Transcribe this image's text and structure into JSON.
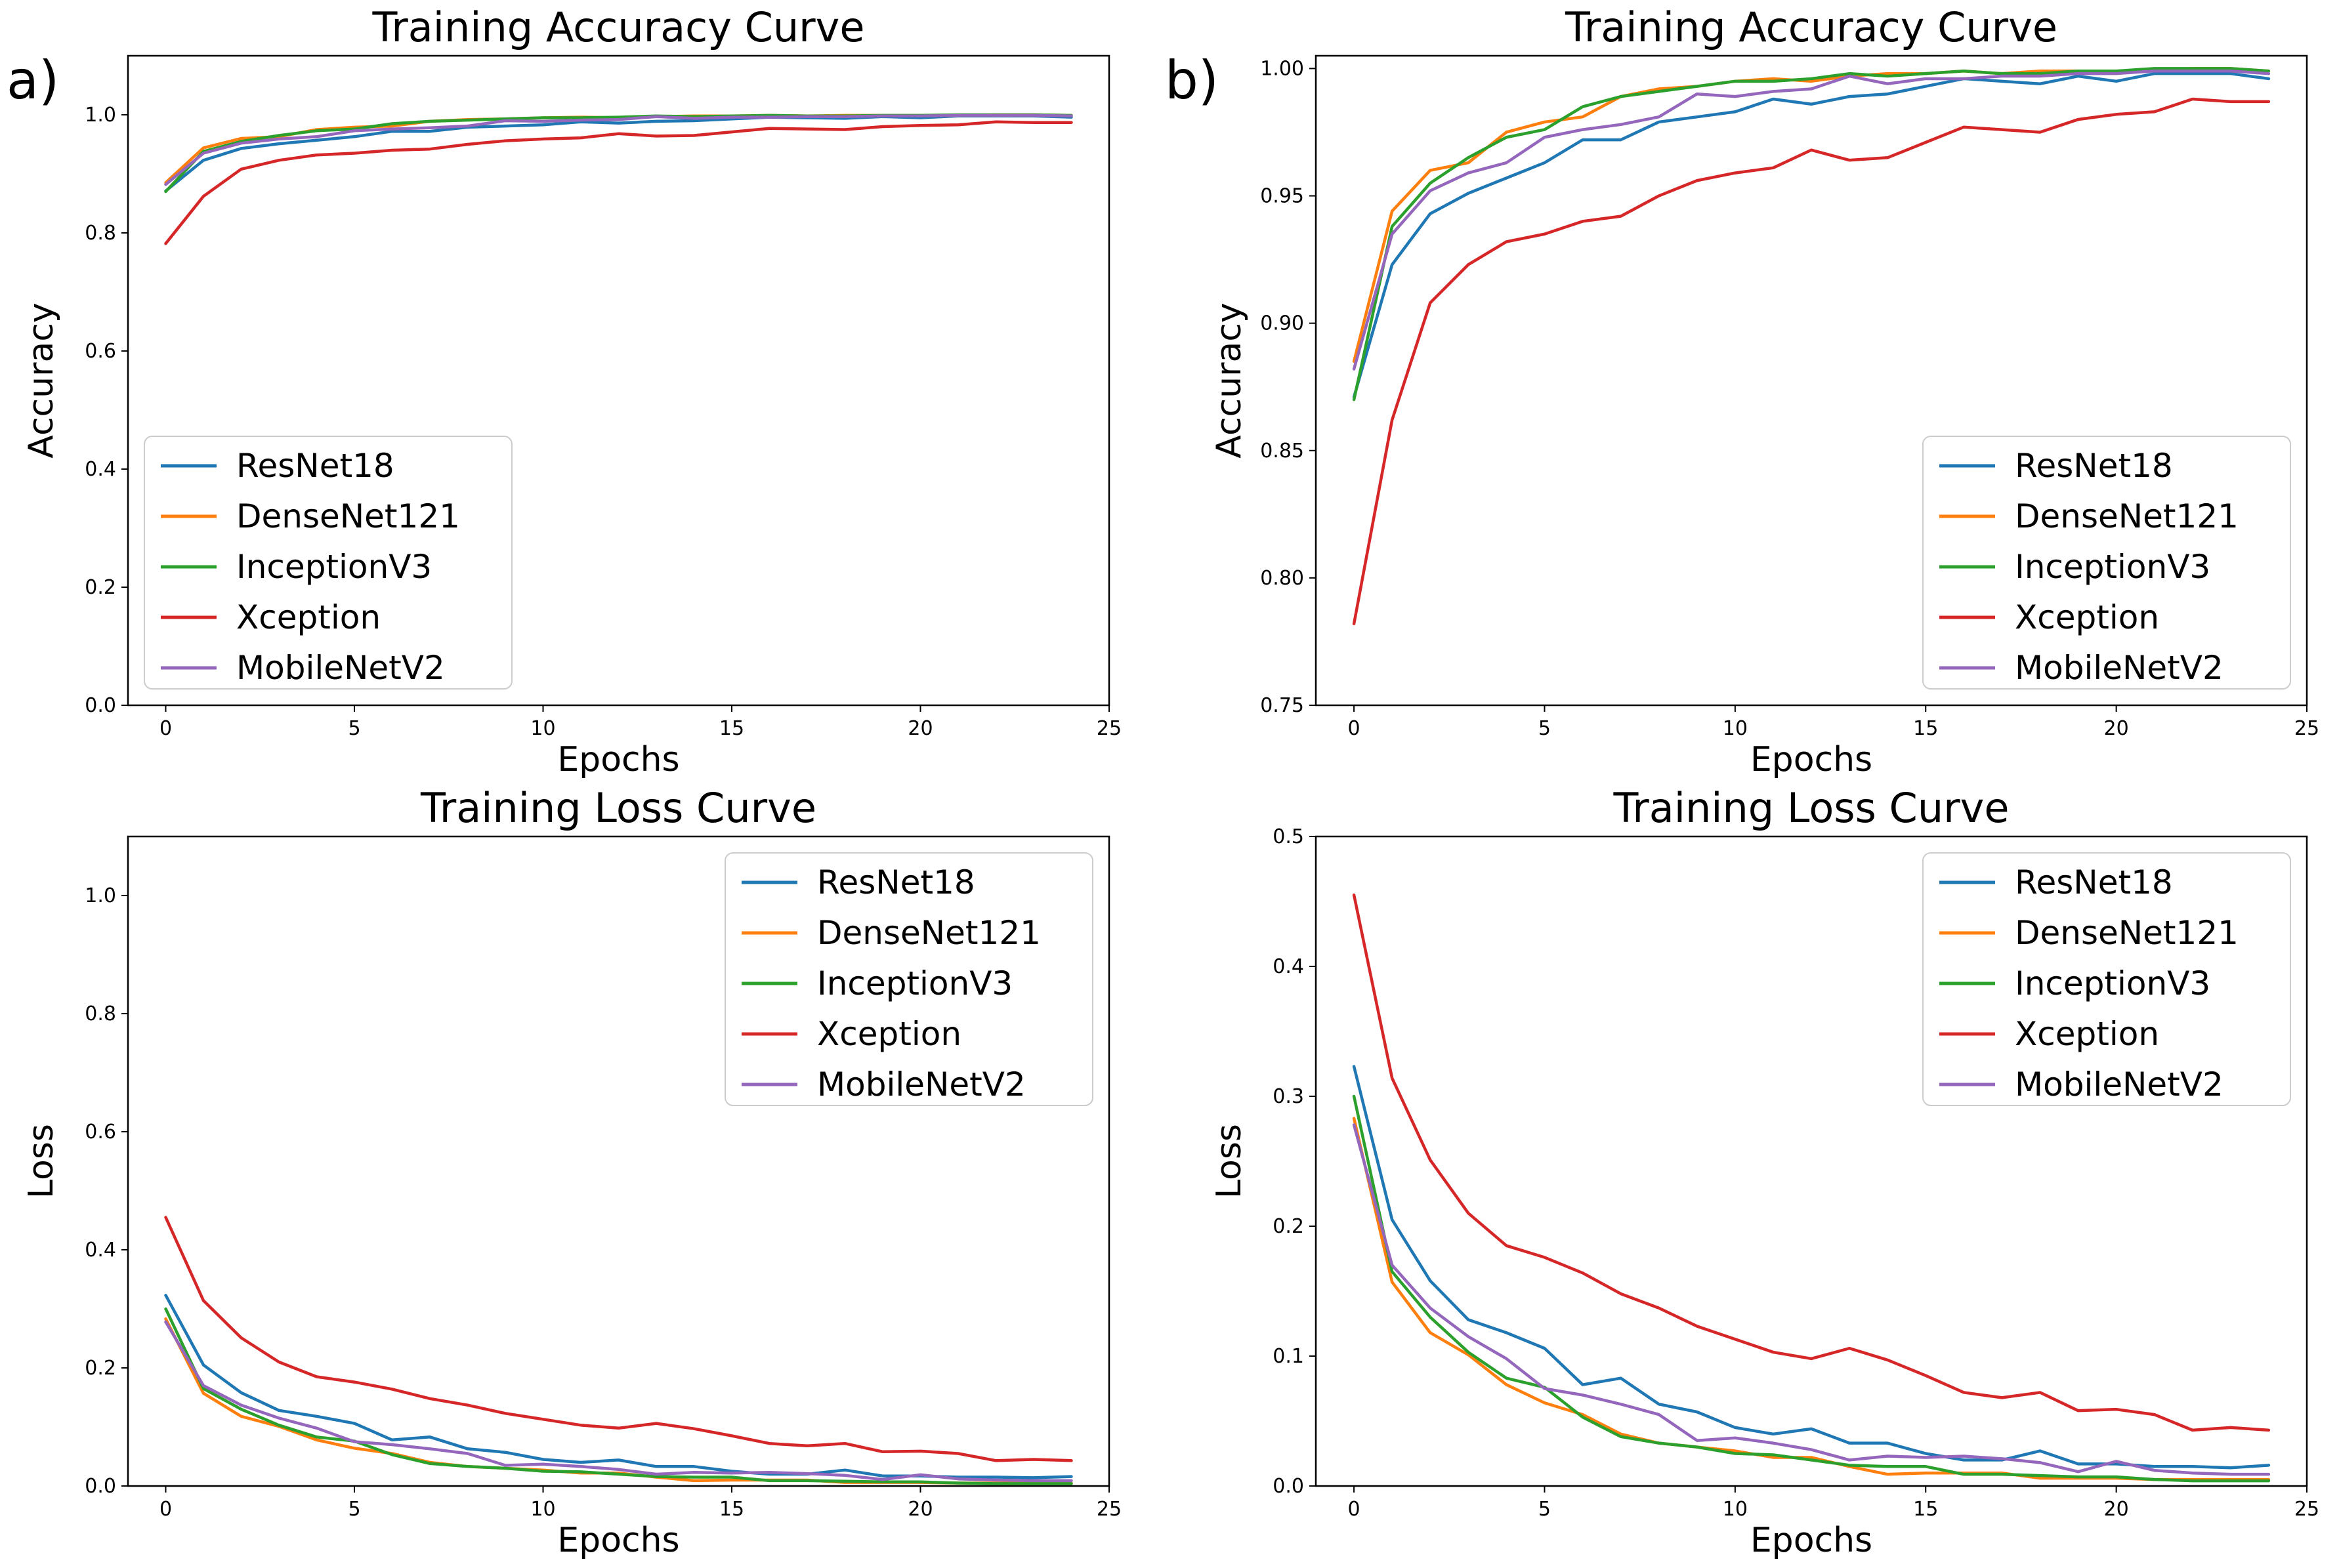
{
  "figure": {
    "panel_labels": [
      "a)",
      "b)"
    ]
  },
  "chart_data": [
    {
      "type": "line",
      "id": "a-acc",
      "title": "Training Accuracy Curve",
      "xlabel": "Epochs",
      "ylabel": "Accuracy",
      "xlim": [
        -1,
        25
      ],
      "ylim": [
        0,
        1.1
      ],
      "xticks": [
        0,
        5,
        10,
        15,
        20,
        25
      ],
      "yticks": [
        0.0,
        0.2,
        0.4,
        0.6,
        0.8,
        1.0
      ],
      "ytick_labels": [
        "0.0",
        "0.2",
        "0.4",
        "0.6",
        "0.8",
        "1.0"
      ],
      "legend_position": "bottom-left",
      "x": [
        0,
        1,
        2,
        3,
        4,
        5,
        6,
        7,
        8,
        9,
        10,
        11,
        12,
        13,
        14,
        15,
        16,
        17,
        18,
        19,
        20,
        21,
        22,
        23,
        24
      ],
      "series": [
        {
          "name": "ResNet18",
          "color": "#1f77b4",
          "values": [
            0.871,
            0.923,
            0.943,
            0.951,
            0.957,
            0.963,
            0.972,
            0.972,
            0.979,
            0.981,
            0.983,
            0.988,
            0.986,
            0.989,
            0.99,
            0.993,
            0.996,
            0.995,
            0.994,
            0.997,
            0.995,
            0.998,
            0.998,
            0.998,
            0.996
          ]
        },
        {
          "name": "DenseNet121",
          "color": "#ff7f0e",
          "values": [
            0.885,
            0.944,
            0.96,
            0.963,
            0.975,
            0.979,
            0.981,
            0.989,
            0.992,
            0.993,
            0.995,
            0.996,
            0.995,
            0.997,
            0.998,
            0.998,
            0.999,
            0.998,
            0.999,
            0.999,
            0.999,
            0.999,
            1.0,
            1.0,
            0.999
          ]
        },
        {
          "name": "InceptionV3",
          "color": "#2ca02c",
          "values": [
            0.87,
            0.938,
            0.955,
            0.965,
            0.973,
            0.976,
            0.985,
            0.989,
            0.991,
            0.993,
            0.995,
            0.995,
            0.996,
            0.998,
            0.997,
            0.998,
            0.999,
            0.998,
            0.998,
            0.999,
            0.999,
            1.0,
            1.0,
            1.0,
            0.999
          ]
        },
        {
          "name": "Xception",
          "color": "#d62728",
          "values": [
            0.782,
            0.862,
            0.908,
            0.923,
            0.932,
            0.935,
            0.94,
            0.942,
            0.95,
            0.956,
            0.959,
            0.961,
            0.968,
            0.964,
            0.965,
            0.971,
            0.977,
            0.976,
            0.975,
            0.98,
            0.982,
            0.983,
            0.988,
            0.987,
            0.987
          ]
        },
        {
          "name": "MobileNetV2",
          "color": "#9467bd",
          "values": [
            0.882,
            0.935,
            0.952,
            0.959,
            0.963,
            0.973,
            0.976,
            0.978,
            0.981,
            0.99,
            0.989,
            0.991,
            0.992,
            0.997,
            0.994,
            0.996,
            0.996,
            0.997,
            0.997,
            0.998,
            0.998,
            0.999,
            0.999,
            0.999,
            0.998
          ]
        }
      ]
    },
    {
      "type": "line",
      "id": "b-acc",
      "title": "Training Accuracy Curve",
      "xlabel": "Epochs",
      "ylabel": "Accuracy",
      "xlim": [
        -1,
        25
      ],
      "ylim": [
        0.75,
        1.005
      ],
      "xticks": [
        0,
        5,
        10,
        15,
        20,
        25
      ],
      "yticks": [
        0.75,
        0.8,
        0.85,
        0.9,
        0.95,
        1.0
      ],
      "ytick_labels": [
        "0.75",
        "0.80",
        "0.85",
        "0.90",
        "0.95",
        "1.00"
      ],
      "legend_position": "bottom-right",
      "x": [
        0,
        1,
        2,
        3,
        4,
        5,
        6,
        7,
        8,
        9,
        10,
        11,
        12,
        13,
        14,
        15,
        16,
        17,
        18,
        19,
        20,
        21,
        22,
        23,
        24
      ],
      "series": [
        {
          "name": "ResNet18",
          "color": "#1f77b4",
          "values": [
            0.871,
            0.923,
            0.943,
            0.951,
            0.957,
            0.963,
            0.972,
            0.972,
            0.979,
            0.981,
            0.983,
            0.988,
            0.986,
            0.989,
            0.99,
            0.993,
            0.996,
            0.995,
            0.994,
            0.997,
            0.995,
            0.998,
            0.998,
            0.998,
            0.996
          ]
        },
        {
          "name": "DenseNet121",
          "color": "#ff7f0e",
          "values": [
            0.885,
            0.944,
            0.96,
            0.963,
            0.975,
            0.979,
            0.981,
            0.989,
            0.992,
            0.993,
            0.995,
            0.996,
            0.995,
            0.997,
            0.998,
            0.998,
            0.999,
            0.998,
            0.999,
            0.999,
            0.999,
            0.999,
            1.0,
            1.0,
            0.999
          ]
        },
        {
          "name": "InceptionV3",
          "color": "#2ca02c",
          "values": [
            0.87,
            0.938,
            0.955,
            0.965,
            0.973,
            0.976,
            0.985,
            0.989,
            0.991,
            0.993,
            0.995,
            0.995,
            0.996,
            0.998,
            0.997,
            0.998,
            0.999,
            0.998,
            0.998,
            0.999,
            0.999,
            1.0,
            1.0,
            1.0,
            0.999
          ]
        },
        {
          "name": "Xception",
          "color": "#d62728",
          "values": [
            0.782,
            0.862,
            0.908,
            0.923,
            0.932,
            0.935,
            0.94,
            0.942,
            0.95,
            0.956,
            0.959,
            0.961,
            0.968,
            0.964,
            0.965,
            0.971,
            0.977,
            0.976,
            0.975,
            0.98,
            0.982,
            0.983,
            0.988,
            0.987,
            0.987
          ]
        },
        {
          "name": "MobileNetV2",
          "color": "#9467bd",
          "values": [
            0.882,
            0.935,
            0.952,
            0.959,
            0.963,
            0.973,
            0.976,
            0.978,
            0.981,
            0.99,
            0.989,
            0.991,
            0.992,
            0.997,
            0.994,
            0.996,
            0.996,
            0.997,
            0.997,
            0.998,
            0.998,
            0.999,
            0.999,
            0.999,
            0.998
          ]
        }
      ]
    },
    {
      "type": "line",
      "id": "a-loss",
      "title": "Training Loss Curve",
      "xlabel": "Epochs",
      "ylabel": "Loss",
      "xlim": [
        -1,
        25
      ],
      "ylim": [
        0,
        1.1
      ],
      "xticks": [
        0,
        5,
        10,
        15,
        20,
        25
      ],
      "yticks": [
        0.0,
        0.2,
        0.4,
        0.6,
        0.8,
        1.0
      ],
      "ytick_labels": [
        "0.0",
        "0.2",
        "0.4",
        "0.6",
        "0.8",
        "1.0"
      ],
      "legend_position": "top-right",
      "x": [
        0,
        1,
        2,
        3,
        4,
        5,
        6,
        7,
        8,
        9,
        10,
        11,
        12,
        13,
        14,
        15,
        16,
        17,
        18,
        19,
        20,
        21,
        22,
        23,
        24
      ],
      "series": [
        {
          "name": "ResNet18",
          "color": "#1f77b4",
          "values": [
            0.323,
            0.205,
            0.158,
            0.128,
            0.118,
            0.106,
            0.078,
            0.083,
            0.063,
            0.057,
            0.045,
            0.04,
            0.044,
            0.033,
            0.033,
            0.025,
            0.02,
            0.02,
            0.027,
            0.017,
            0.017,
            0.015,
            0.015,
            0.014,
            0.016
          ]
        },
        {
          "name": "DenseNet121",
          "color": "#ff7f0e",
          "values": [
            0.283,
            0.157,
            0.118,
            0.101,
            0.078,
            0.064,
            0.055,
            0.04,
            0.033,
            0.03,
            0.027,
            0.022,
            0.022,
            0.015,
            0.009,
            0.01,
            0.01,
            0.01,
            0.006,
            0.006,
            0.006,
            0.005,
            0.005,
            0.005,
            0.005
          ]
        },
        {
          "name": "InceptionV3",
          "color": "#2ca02c",
          "values": [
            0.3,
            0.165,
            0.13,
            0.103,
            0.083,
            0.076,
            0.053,
            0.038,
            0.033,
            0.03,
            0.025,
            0.024,
            0.02,
            0.016,
            0.015,
            0.015,
            0.009,
            0.009,
            0.008,
            0.007,
            0.007,
            0.005,
            0.004,
            0.004,
            0.004
          ]
        },
        {
          "name": "Xception",
          "color": "#d62728",
          "values": [
            0.455,
            0.314,
            0.251,
            0.21,
            0.185,
            0.176,
            0.164,
            0.148,
            0.137,
            0.123,
            0.113,
            0.103,
            0.098,
            0.106,
            0.097,
            0.085,
            0.072,
            0.068,
            0.072,
            0.058,
            0.059,
            0.055,
            0.043,
            0.045,
            0.043
          ]
        },
        {
          "name": "MobileNetV2",
          "color": "#9467bd",
          "values": [
            0.278,
            0.17,
            0.137,
            0.115,
            0.098,
            0.075,
            0.07,
            0.063,
            0.055,
            0.035,
            0.037,
            0.033,
            0.028,
            0.02,
            0.023,
            0.022,
            0.023,
            0.021,
            0.018,
            0.011,
            0.019,
            0.012,
            0.01,
            0.009,
            0.009
          ]
        }
      ]
    },
    {
      "type": "line",
      "id": "b-loss",
      "title": "Training Loss Curve",
      "xlabel": "Epochs",
      "ylabel": "Loss",
      "xlim": [
        -1,
        25
      ],
      "ylim": [
        0,
        0.5
      ],
      "xticks": [
        0,
        5,
        10,
        15,
        20,
        25
      ],
      "yticks": [
        0.0,
        0.1,
        0.2,
        0.3,
        0.4,
        0.5
      ],
      "ytick_labels": [
        "0.0",
        "0.1",
        "0.2",
        "0.3",
        "0.4",
        "0.5"
      ],
      "legend_position": "top-right",
      "x": [
        0,
        1,
        2,
        3,
        4,
        5,
        6,
        7,
        8,
        9,
        10,
        11,
        12,
        13,
        14,
        15,
        16,
        17,
        18,
        19,
        20,
        21,
        22,
        23,
        24
      ],
      "series": [
        {
          "name": "ResNet18",
          "color": "#1f77b4",
          "values": [
            0.323,
            0.205,
            0.158,
            0.128,
            0.118,
            0.106,
            0.078,
            0.083,
            0.063,
            0.057,
            0.045,
            0.04,
            0.044,
            0.033,
            0.033,
            0.025,
            0.02,
            0.02,
            0.027,
            0.017,
            0.017,
            0.015,
            0.015,
            0.014,
            0.016
          ]
        },
        {
          "name": "DenseNet121",
          "color": "#ff7f0e",
          "values": [
            0.283,
            0.157,
            0.118,
            0.101,
            0.078,
            0.064,
            0.055,
            0.04,
            0.033,
            0.03,
            0.027,
            0.022,
            0.022,
            0.015,
            0.009,
            0.01,
            0.01,
            0.01,
            0.006,
            0.006,
            0.006,
            0.005,
            0.005,
            0.005,
            0.005
          ]
        },
        {
          "name": "InceptionV3",
          "color": "#2ca02c",
          "values": [
            0.3,
            0.165,
            0.13,
            0.103,
            0.083,
            0.076,
            0.053,
            0.038,
            0.033,
            0.03,
            0.025,
            0.024,
            0.02,
            0.016,
            0.015,
            0.015,
            0.009,
            0.009,
            0.008,
            0.007,
            0.007,
            0.005,
            0.004,
            0.004,
            0.004
          ]
        },
        {
          "name": "Xception",
          "color": "#d62728",
          "values": [
            0.455,
            0.314,
            0.251,
            0.21,
            0.185,
            0.176,
            0.164,
            0.148,
            0.137,
            0.123,
            0.113,
            0.103,
            0.098,
            0.106,
            0.097,
            0.085,
            0.072,
            0.068,
            0.072,
            0.058,
            0.059,
            0.055,
            0.043,
            0.045,
            0.043
          ]
        },
        {
          "name": "MobileNetV2",
          "color": "#9467bd",
          "values": [
            0.278,
            0.17,
            0.137,
            0.115,
            0.098,
            0.075,
            0.07,
            0.063,
            0.055,
            0.035,
            0.037,
            0.033,
            0.028,
            0.02,
            0.023,
            0.022,
            0.023,
            0.021,
            0.018,
            0.011,
            0.019,
            0.012,
            0.01,
            0.009,
            0.009
          ]
        }
      ]
    }
  ]
}
